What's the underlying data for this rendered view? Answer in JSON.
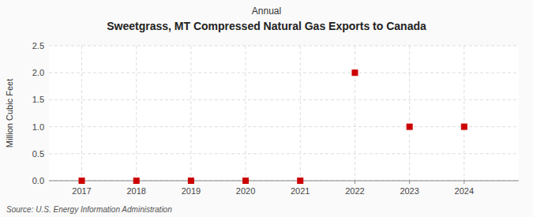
{
  "chart_data": {
    "type": "scatter",
    "title": "Sweetgrass, MT Compressed Natural Gas Exports to Canada",
    "subtitle": "Annual",
    "ylabel": "Million Cubic Feet",
    "source": "Source: U.S. Energy Information Administration",
    "x": [
      2017,
      2018,
      2019,
      2020,
      2021,
      2022,
      2023,
      2024
    ],
    "values": [
      0.0,
      0.0,
      0.0,
      0.0,
      0.0,
      2.0,
      1.0,
      1.0
    ],
    "color": "#cc0000",
    "marker": "square",
    "line_style": "none",
    "xlim": [
      2016.4,
      2025.0
    ],
    "ylim": [
      0.0,
      2.5
    ],
    "xticks": [
      2017,
      2018,
      2019,
      2020,
      2021,
      2022,
      2023,
      2024
    ],
    "yticks": [
      {
        "value": 0.0,
        "label": "0.0"
      },
      0.5,
      {
        "value": 1.0,
        "label": "1.0"
      },
      1.5,
      {
        "value": 2.0,
        "label": "2.0"
      },
      2.5
    ],
    "grid": true
  }
}
